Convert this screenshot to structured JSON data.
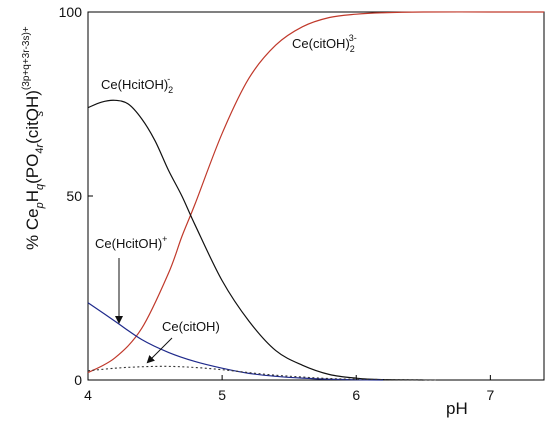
{
  "chart_data": {
    "type": "line",
    "xlabel": "pH",
    "ylabel": "% CepHq(PO4)r(citOH)s",
    "ylabel_parts": {
      "main": "% Ce",
      "sub_p": "p",
      "h": "H",
      "sub_q": "q",
      "po": "(PO",
      "sub_4r": "4",
      "sub_r": "r",
      "citoh": "(citOH)",
      "sup_charge": "(3p+q+3r-3s)+",
      "sub_s": "s"
    },
    "xlim": [
      4.0,
      7.4
    ],
    "ylim": [
      0,
      100
    ],
    "x_ticks": [
      4,
      5,
      6,
      7
    ],
    "x_tick_labels": [
      "4",
      "5",
      "6",
      "7"
    ],
    "y_ticks": [
      0,
      50,
      100
    ],
    "y_tick_labels": [
      "0",
      "50",
      "100"
    ],
    "grid": false,
    "series": [
      {
        "name": "Ce(citOH)2 3-",
        "color": "#c0392b",
        "style": "solid",
        "x": [
          4.0,
          4.2,
          4.4,
          4.6,
          4.7,
          4.8,
          5.0,
          5.2,
          5.4,
          5.6,
          5.8,
          6.0,
          6.2,
          6.5,
          7.0,
          7.4
        ],
        "values": [
          2,
          6,
          14,
          29,
          39,
          48,
          67,
          82,
          91,
          96,
          98.5,
          99.4,
          99.8,
          100,
          100,
          100
        ]
      },
      {
        "name": "Ce(HcitOH)2 -",
        "color": "#111111",
        "style": "solid",
        "x": [
          4.0,
          4.1,
          4.2,
          4.3,
          4.4,
          4.5,
          4.6,
          4.7,
          4.8,
          5.0,
          5.2,
          5.4,
          5.6,
          5.8,
          6.0,
          6.2,
          6.5
        ],
        "values": [
          74,
          75.5,
          76,
          75,
          71,
          65,
          57,
          50,
          42,
          27,
          16,
          8,
          4,
          1.5,
          0.5,
          0.1,
          0
        ]
      },
      {
        "name": "Ce(HcitOH)+",
        "color": "#1f2a8c",
        "style": "solid",
        "x": [
          4.0,
          4.2,
          4.4,
          4.6,
          4.8,
          5.0,
          5.2,
          5.4,
          5.6,
          5.8,
          6.0,
          6.2
        ],
        "values": [
          21,
          16,
          11,
          7.5,
          5,
          3.2,
          1.8,
          1,
          0.5,
          0.2,
          0.05,
          0
        ]
      },
      {
        "name": "Ce(citOH)",
        "color": "#333333",
        "style": "dotted",
        "x": [
          4.0,
          4.2,
          4.4,
          4.6,
          4.8,
          5.0,
          5.2,
          5.4,
          5.6,
          5.8,
          6.0,
          6.3,
          6.6
        ],
        "values": [
          2.5,
          3.2,
          3.6,
          3.7,
          3.4,
          2.8,
          2.0,
          1.3,
          0.8,
          0.4,
          0.2,
          0.1,
          0
        ]
      }
    ],
    "annotations": [
      {
        "id": "ceCitOH2",
        "main": "Ce(citOH)",
        "sub": "2",
        "sup": "3-"
      },
      {
        "id": "ceHcitOH2",
        "main": "Ce(HcitOH)",
        "sub": "2",
        "sup": "-"
      },
      {
        "id": "ceHcitOH",
        "main": "Ce(HcitOH)",
        "sup": "+"
      },
      {
        "id": "ceCitOH",
        "main": "Ce(citOH)"
      }
    ]
  }
}
